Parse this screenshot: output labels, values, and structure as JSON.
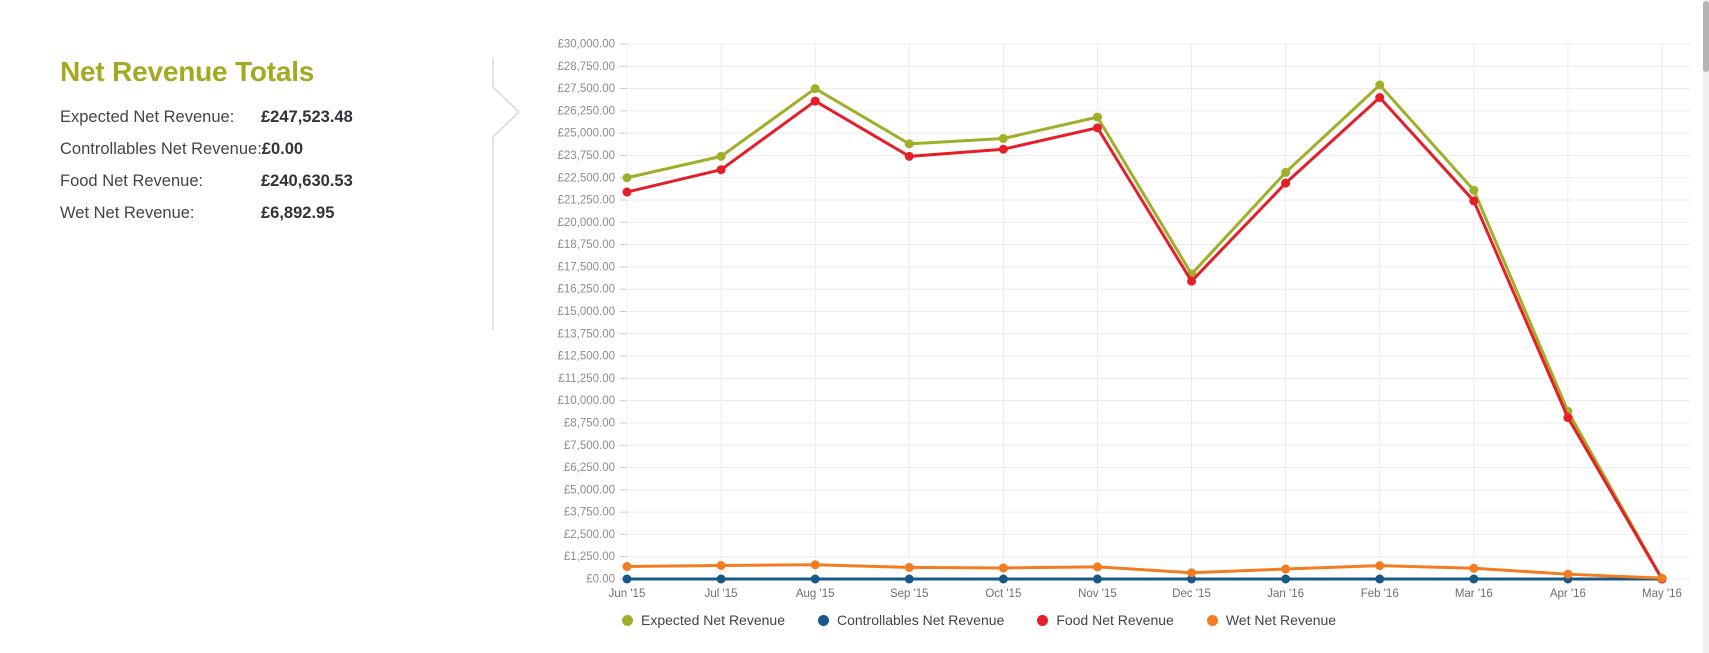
{
  "summary": {
    "title": "Net Revenue Totals",
    "rows": [
      {
        "label": "Expected Net Revenue:",
        "value": "£247,523.48"
      },
      {
        "label": "Controllables Net Revenue:",
        "value": "£0.00"
      },
      {
        "label": "Food Net Revenue:",
        "value": "£240,630.53"
      },
      {
        "label": "Wet Net Revenue:",
        "value": "£6,892.95"
      }
    ]
  },
  "colors": {
    "title_olive": "#a3aa22",
    "expected_series": "#a0af28",
    "controllables_series": "#175887",
    "food_series": "#e51e2a",
    "wet_series": "#f47c20",
    "gridline": "#ececec",
    "tick": "#c9c9c9",
    "y_label": "#8d8d8d",
    "x_label": "#6e6e6e",
    "divider": "#d8d8d8"
  },
  "chart_data": {
    "type": "line",
    "title": "",
    "xlabel": "",
    "ylabel": "",
    "categories": [
      "Jun '15",
      "Jul '15",
      "Aug '15",
      "Sep '15",
      "Oct '15",
      "Nov '15",
      "Dec '15",
      "Jan '16",
      "Feb '16",
      "Mar '16",
      "Apr '16",
      "May '16"
    ],
    "series": [
      {
        "name": "Expected Net Revenue",
        "color": "#a0af28",
        "values": [
          22500,
          23700,
          27500,
          24400,
          24700,
          25900,
          17100,
          22800,
          27700,
          21800,
          9400,
          0
        ]
      },
      {
        "name": "Controllables Net Revenue",
        "color": "#175887",
        "values": [
          0,
          0,
          0,
          0,
          0,
          0,
          0,
          0,
          0,
          0,
          0,
          0
        ]
      },
      {
        "name": "Food Net Revenue",
        "color": "#e51e2a",
        "values": [
          21700,
          22950,
          26800,
          23700,
          24100,
          25300,
          16700,
          22200,
          27000,
          21200,
          9050,
          0
        ]
      },
      {
        "name": "Wet Net Revenue",
        "color": "#f47c20",
        "values": [
          700,
          760,
          800,
          650,
          620,
          680,
          350,
          560,
          750,
          600,
          270,
          50
        ]
      }
    ],
    "ylim": [
      0,
      30000
    ],
    "ytick_step": 1250,
    "ytick_format": "currency_2dp",
    "currency_prefix": "£",
    "grid": true,
    "legend_position": "bottom"
  }
}
